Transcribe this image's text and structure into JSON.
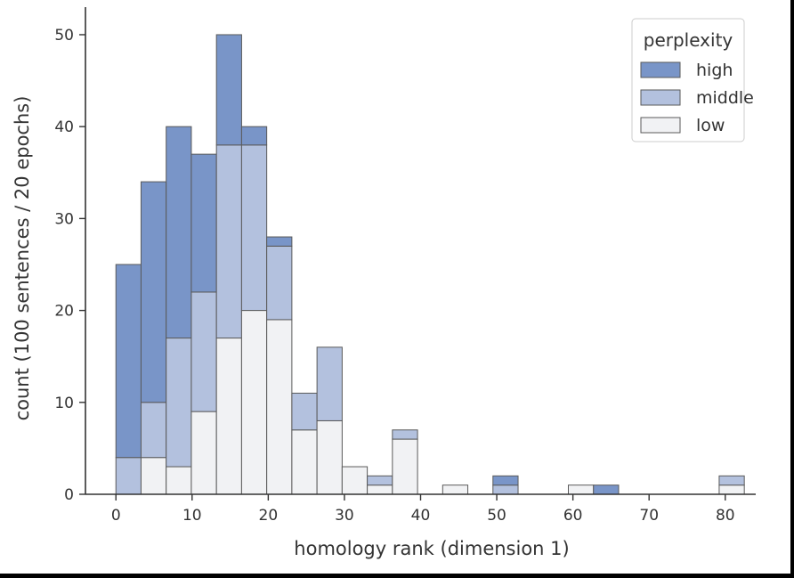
{
  "chart_data": {
    "type": "bar",
    "stacked": true,
    "title": "",
    "xlabel": "homology rank (dimension 1)",
    "ylabel": "count (100 sentences / 20 epochs)",
    "xlim": [
      -4,
      84
    ],
    "ylim": [
      0,
      53
    ],
    "x_ticks": [
      0,
      10,
      20,
      30,
      40,
      50,
      60,
      70,
      80
    ],
    "y_ticks": [
      0,
      10,
      20,
      30,
      40,
      50
    ],
    "bin_edges": [
      0,
      3.3,
      6.6,
      9.9,
      13.2,
      16.5,
      19.8,
      23.1,
      26.4,
      29.7,
      33,
      36.3,
      39.6,
      42.9,
      46.2,
      49.5,
      52.8,
      56.1,
      59.4,
      62.7,
      66,
      69.3,
      72.6,
      75.9,
      79.2,
      82.5
    ],
    "legend": {
      "title": "perplexity",
      "placement": "top-right"
    },
    "series": [
      {
        "name": "low",
        "color": "#f1f2f4",
        "values": [
          0,
          4,
          3,
          9,
          17,
          20,
          19,
          7,
          8,
          3,
          1,
          6,
          0,
          1,
          0,
          0,
          0,
          0,
          1,
          0,
          0,
          0,
          0,
          0,
          1
        ]
      },
      {
        "name": "middle",
        "color": "#b3c1de",
        "values": [
          4,
          6,
          14,
          13,
          21,
          18,
          8,
          4,
          8,
          0,
          1,
          1,
          0,
          0,
          0,
          1,
          0,
          0,
          0,
          0,
          0,
          0,
          0,
          0,
          1
        ]
      },
      {
        "name": "high",
        "color": "#7995c8",
        "values": [
          21,
          24,
          23,
          15,
          12,
          2,
          1,
          0,
          0,
          0,
          0,
          0,
          0,
          0,
          0,
          1,
          0,
          0,
          0,
          1,
          0,
          0,
          0,
          0,
          0
        ]
      }
    ]
  }
}
